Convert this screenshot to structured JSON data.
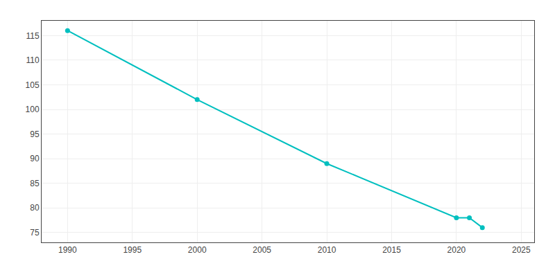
{
  "chart_data": {
    "type": "line",
    "x": [
      1990,
      2000,
      2010,
      2020,
      2021,
      2022
    ],
    "values": [
      116,
      102,
      89,
      78,
      78,
      76
    ],
    "color": "#00BFBF",
    "marker": "circle",
    "grid": true,
    "xlim": [
      1988,
      2026
    ],
    "ylim": [
      73,
      118
    ],
    "xticks": [
      1990,
      1995,
      2000,
      2005,
      2010,
      2015,
      2020,
      2025
    ],
    "yticks": [
      75,
      80,
      85,
      90,
      95,
      100,
      105,
      110,
      115
    ]
  }
}
